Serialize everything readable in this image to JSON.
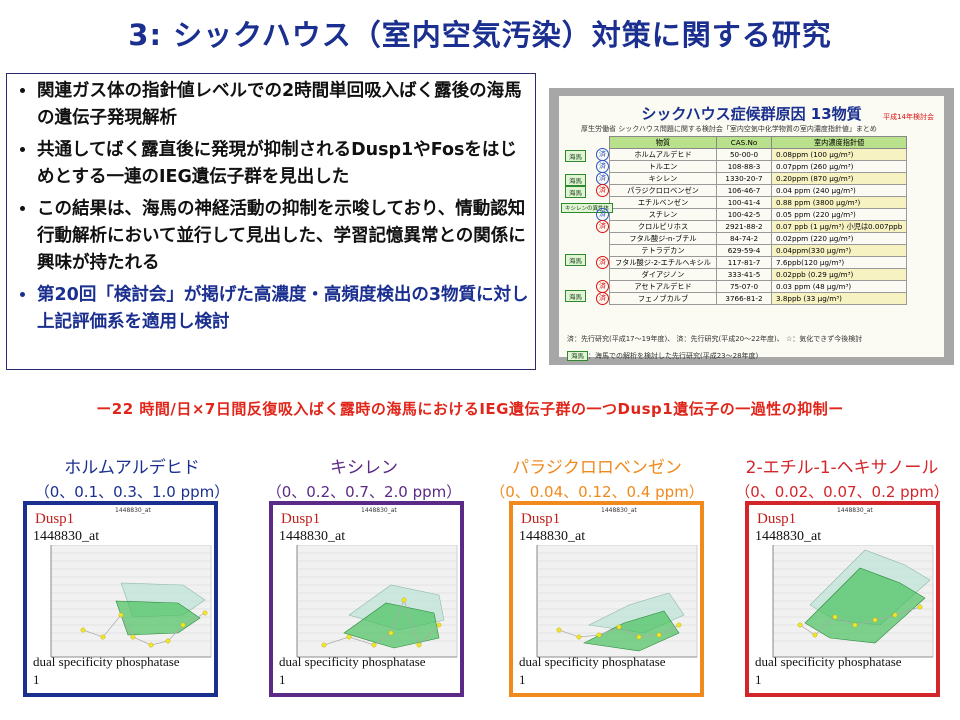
{
  "title": "3: シックハウス（室内空気汚染）対策に関する研究",
  "bullets": [
    "関連ガス体の指針値レベルでの2時間単回吸入ばく露後の海馬の遺伝子発現解析",
    "共通してばく露直後に発現が抑制されるDusp1やFosをはじめとする一連のIEG遺伝子群を見出した",
    "この結果は、海馬の神経活動の抑制を示唆しており、情動認知行動解析において並行して見出した、学習記憶異常との関係に興味が持たれる",
    "第20回「検討会」が掲げた高濃度・高頻度検出の3物質に対し上記評価系を適用し検討"
  ],
  "table_image": {
    "title": "シックハウス症候群原因 13物質",
    "note": "平成14年検討会",
    "subtitle": "厚生労働省 シックハウス問題に関する検討会「室内空気中化学物質の室内濃度指針値」まとめ",
    "headers": [
      "物質",
      "CAS.No",
      "室内濃度指針値"
    ],
    "rows": [
      [
        "ホルムアルデヒド",
        "50-00-0",
        "0.08ppm (100 μg/m³)"
      ],
      [
        "トルエン",
        "108-88-3",
        "0.07ppm (260 μg/m³)"
      ],
      [
        "キシレン",
        "1330-20-7",
        "0.20ppm (870 μg/m³)"
      ],
      [
        "パラジクロロベンゼン",
        "106-46-7",
        "0.04 ppm (240 μg/m³)"
      ],
      [
        "エチルベンゼン",
        "100-41-4",
        "0.88 ppm (3800 μg/m³)"
      ],
      [
        "スチレン",
        "100-42-5",
        "0.05 ppm (220 μg/m³)"
      ],
      [
        "クロルピリホス",
        "2921-88-2",
        "0.07 ppb (1 μg/m³) 小児は0.007ppb"
      ],
      [
        "フタル酸ジ-n-ブチル",
        "84-74-2",
        "0.02ppm (220 μg/m³)"
      ],
      [
        "テトラデカン",
        "629-59-4",
        "0.04ppm(330 μg/m³)"
      ],
      [
        "フタル酸ジ-2-エチルヘキシル",
        "117-81-7",
        "7.6ppb(120 μg/m³)"
      ],
      [
        "ダイアジノン",
        "333-41-5",
        "0.02ppb (0.29 μg/m³)"
      ],
      [
        "アセトアルデヒド",
        "75-07-0",
        "0.03 ppm (48 μg/m³)"
      ],
      [
        "フェノブカルブ",
        "3766-81-2",
        "3.8ppb (33 μg/m³)"
      ]
    ],
    "side_tags": [
      "海馬",
      "海馬",
      "海馬",
      "キシレンの異性体",
      "海馬",
      "海馬"
    ],
    "circle_mark": "済",
    "legend_line1": "済：先行研究(平成17〜19年度)、 済：先行研究(平成20〜22年度)、 ☆：気化できず今後検討",
    "legend_tag": "海馬",
    "legend_line2": "：海馬での解析を検討した先行研究(平成23〜28年度)"
  },
  "subtitle": "ー22 時間/日×7日間反復吸入ばく露時の海馬におけるIEG遺伝子群の一つDusp1遺伝子の一過性の抑制ー",
  "conditions": [
    {
      "name": "ホルムアルデヒド",
      "dose": "（0、0.1、0.3、1.0 ppm）",
      "color": "#1a2f8f"
    },
    {
      "name": "キシレン",
      "dose": "（0、0.2、0.7、2.0 ppm）",
      "color": "#5b2a86"
    },
    {
      "name": "パラジクロロベンゼン",
      "dose": "（0、0.04、0.12、0.4 ppm）",
      "color": "#f08a1c"
    },
    {
      "name": "2-エチル-1-ヘキサノール",
      "dose": "（0、0.02、0.07、0.2 ppm）",
      "color": "#d4252b"
    }
  ],
  "panels": [
    {
      "gene": "Dusp1",
      "probe": "1448830_at",
      "desc": "dual specificity phosphatase",
      "num": "1",
      "border": "#1a2f8f"
    },
    {
      "gene": "Dusp1",
      "probe": "1448830_at",
      "desc": "dual specificity phosphatase",
      "num": "1",
      "border": "#5b2a86"
    },
    {
      "gene": "Dusp1",
      "probe": "1448830_at",
      "desc": "dual specificity phosphatase",
      "num": "1",
      "border": "#f08a1c"
    },
    {
      "gene": "Dusp1",
      "probe": "1448830_at",
      "desc": "dual specificity phosphatase",
      "num": "1",
      "border": "#d4252b"
    }
  ]
}
